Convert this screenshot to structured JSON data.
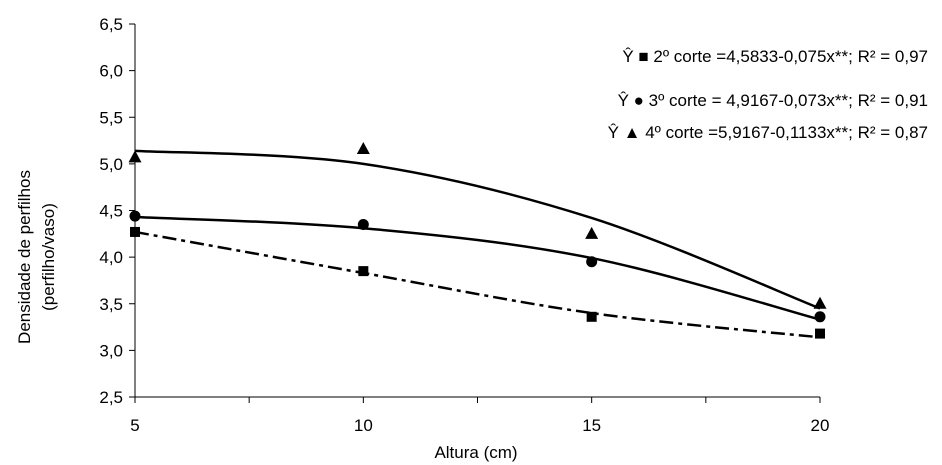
{
  "chart_data": {
    "type": "scatter",
    "xlabel": "Altura (cm)",
    "ylabel_lines": [
      "Densidade de perfilhos",
      "(perfilho/vaso)"
    ],
    "xlim": [
      5,
      20
    ],
    "ylim": [
      2.5,
      6.5
    ],
    "x_ticks": [
      "5",
      "10",
      "15",
      "20"
    ],
    "y_ticks": [
      "2,5",
      "3,0",
      "3,5",
      "4,0",
      "4,5",
      "5,0",
      "5,5",
      "6,0",
      "6,5"
    ],
    "grid": false,
    "legend_position": "top-right",
    "series": [
      {
        "legend_text": "Ŷ ■ 2º corte =4,5833-0,075x**; R² = 0,97",
        "marker": "square",
        "line_style": "dashed",
        "x": [
          5,
          10,
          15,
          20
        ],
        "y": [
          4.27,
          3.85,
          3.36,
          3.18
        ],
        "fit_y": [
          4.27,
          3.83,
          3.4,
          3.14
        ]
      },
      {
        "legend_text": "Ŷ ● 3º corte = 4,9167-0,073x**; R² = 0,91",
        "marker": "circle",
        "line_style": "solid",
        "x": [
          5,
          10,
          15,
          20
        ],
        "y": [
          4.44,
          4.35,
          3.95,
          3.36
        ],
        "fit_y": [
          4.43,
          4.31,
          3.99,
          3.33
        ]
      },
      {
        "legend_text": "Ŷ ▲ 4º corte =5,9167-0,1133x**; R² = 0,87",
        "marker": "triangle",
        "line_style": "solid",
        "x": [
          5,
          10,
          15,
          20
        ],
        "y": [
          5.07,
          5.16,
          4.25,
          3.5
        ],
        "fit_y": [
          5.14,
          5.0,
          4.42,
          3.45
        ]
      }
    ]
  }
}
